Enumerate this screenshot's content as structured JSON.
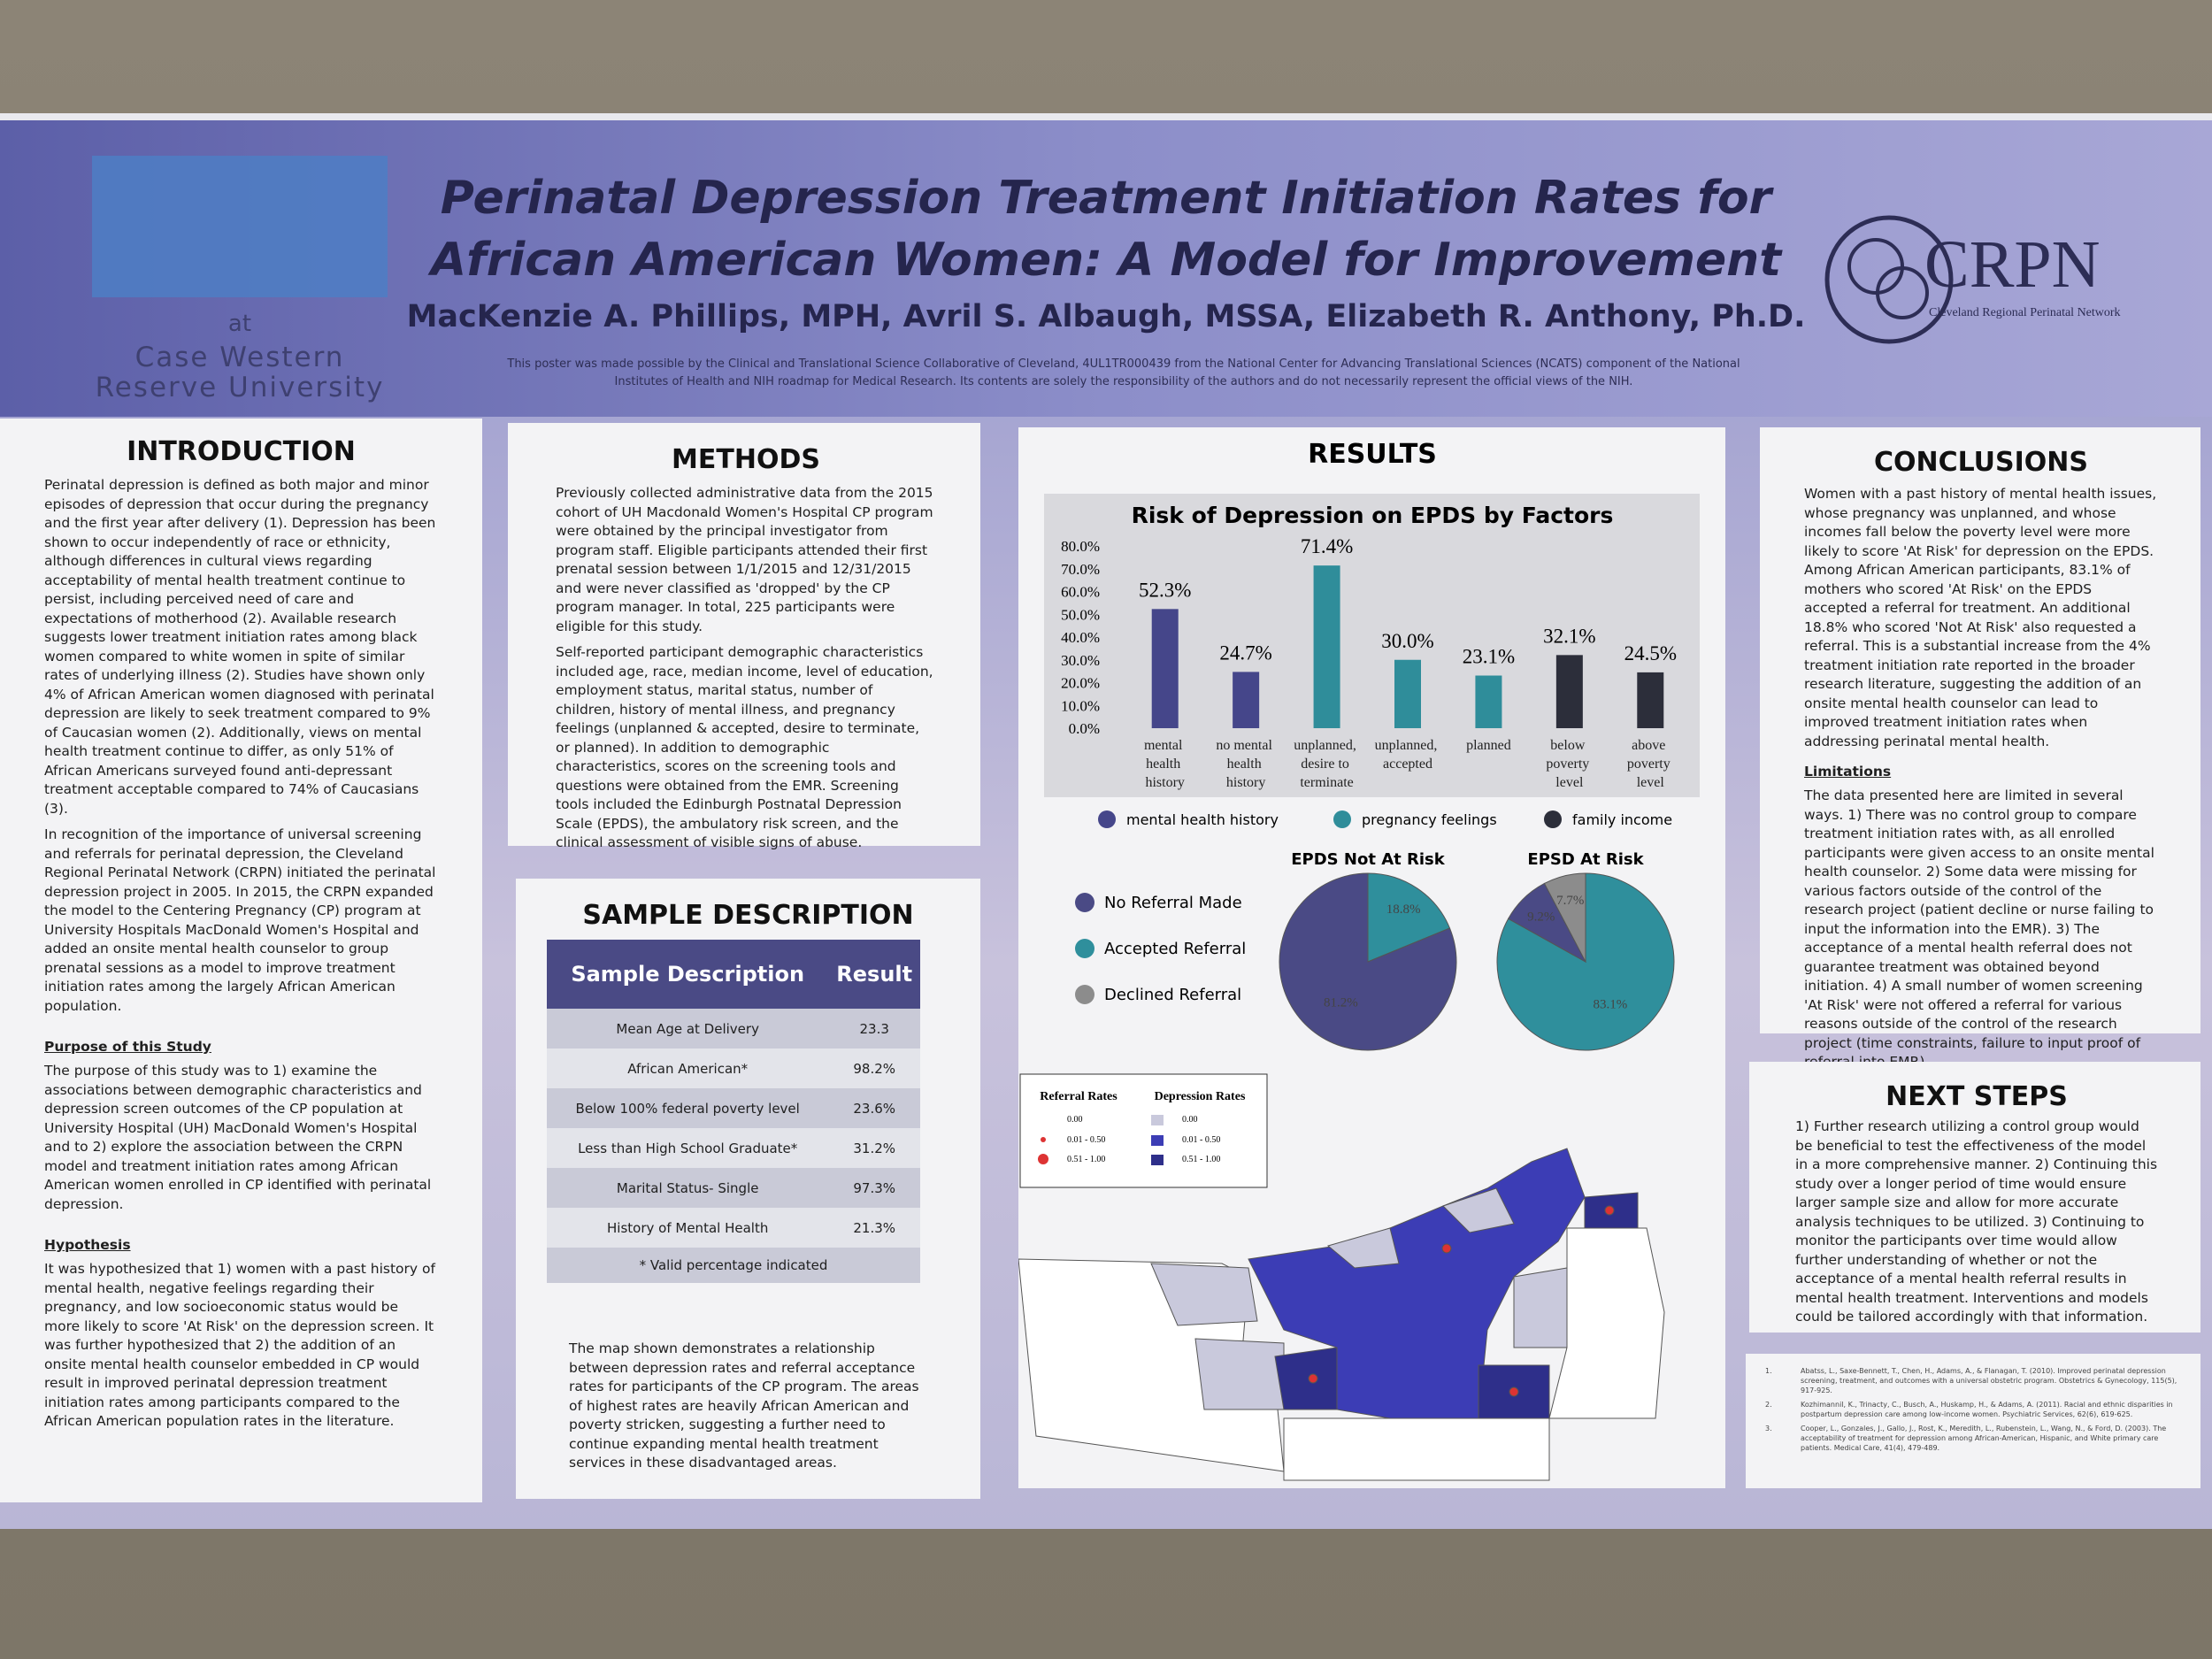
{
  "header": {
    "title_line1": "Perinatal Depression Treatment Initiation Rates for",
    "title_line2": "African American Women: A Model for Improvement",
    "authors": "MacKenzie A. Phillips, MPH, Avril S. Albaugh, MSSA, Elizabeth R. Anthony, Ph.D.",
    "funding": "This poster was made possible by the Clinical and Translational Science Collaborative of Cleveland, 4UL1TR000439 from the National Center for Advancing Translational Sciences (NCATS) component of the National Institutes of Health and NIH roadmap for Medical Research. Its contents are solely the responsibility of the authors and do not necessarily represent the official views of the NIH.",
    "left_logo": {
      "at": "at",
      "line1": "Case Western",
      "line2": "Reserve University"
    },
    "right_logo": {
      "name": "CRPN",
      "subtitle": "Cleveland Regional Perinatal Network"
    }
  },
  "introduction": {
    "heading": "INTRODUCTION",
    "paragraphs": [
      "Perinatal depression is defined as both major and minor episodes of depression that occur during the pregnancy and the first year after delivery (1). Depression has been shown to occur independently of race or ethnicity, although differences in cultural views regarding acceptability of mental health treatment continue to persist, including perceived need of care and expectations of motherhood (2). Available research suggests lower treatment initiation rates among black women compared to white women in spite of similar rates of underlying illness (2). Studies have shown only 4% of African American women diagnosed with perinatal depression are likely to seek treatment compared to 9% of Caucasian women (2). Additionally, views on mental health treatment continue to differ, as only 51% of African Americans surveyed found anti-depressant treatment acceptable compared to 74% of Caucasians (3).",
      "In recognition of the importance of universal screening and referrals for perinatal depression, the Cleveland Regional Perinatal Network (CRPN) initiated the perinatal depression project in 2005. In 2015, the CRPN expanded the model to the Centering Pregnancy (CP) program at University Hospitals MacDonald Women's Hospital and added an onsite mental health counselor to group prenatal sessions as a model to improve treatment initiation rates among the largely African American population."
    ],
    "purpose_heading": "Purpose of this Study",
    "purpose": "The purpose of this study was to 1) examine the associations between demographic characteristics and depression screen outcomes of the CP population at University Hospital (UH) MacDonald Women's Hospital and to 2) explore the association between the CRPN model and treatment initiation rates among African American women enrolled in CP identified with perinatal depression.",
    "hypothesis_heading": "Hypothesis",
    "hypothesis": "It was hypothesized that 1) women with a past history of mental health, negative feelings regarding their pregnancy, and low socioeconomic status would be more likely to score 'At Risk' on the depression screen. It was further hypothesized that 2) the addition of an onsite mental health counselor embedded in CP would result in improved perinatal depression treatment initiation rates among participants compared to the African American population rates in the literature."
  },
  "methods": {
    "heading": "METHODS",
    "paragraphs": [
      "Previously collected administrative data from the 2015 cohort of UH Macdonald Women's Hospital CP program were obtained by the principal investigator from program staff. Eligible participants attended their first prenatal session between 1/1/2015 and 12/31/2015 and were never classified as 'dropped' by the CP program manager. In total, 225 participants were eligible for this study.",
      "Self-reported participant demographic characteristics included age, race, median income, level of education, employment status, marital status, number of children, history of mental illness, and pregnancy feelings (unplanned & accepted, desire to terminate, or planned). In addition to demographic characteristics, scores on the screening tools and questions were obtained from the EMR. Screening tools included the Edinburgh Postnatal Depression Scale (EPDS), the ambulatory risk screen, and the clinical assessment of visible signs of abuse."
    ]
  },
  "sample": {
    "heading": "SAMPLE DESCRIPTION",
    "table": {
      "columns": [
        "Sample Description",
        "Result"
      ],
      "rows": [
        [
          "Mean Age at Delivery",
          "23.3"
        ],
        [
          "African American*",
          "98.2%"
        ],
        [
          "Below 100% federal poverty level",
          "23.6%"
        ],
        [
          "Less than High School Graduate*",
          "31.2%"
        ],
        [
          "Marital Status- Single",
          "97.3%"
        ],
        [
          "History of Mental Health",
          "21.3%"
        ]
      ],
      "footnote": "* Valid percentage indicated"
    },
    "map_text": "The map shown demonstrates a relationship between depression rates and referral acceptance rates for participants of the CP program. The areas of highest rates are heavily African American and poverty stricken, suggesting a further need to continue expanding mental health treatment services in these disadvantaged areas."
  },
  "results": {
    "heading": "RESULTS",
    "map_legend": {
      "referral_title": "Referral Rates",
      "depression_title": "Depression Rates",
      "referral_items": [
        "0.00",
        "0.01 - 0.50",
        "0.51 - 1.00"
      ],
      "depression_items": [
        "0.00",
        "0.01 - 0.50",
        "0.51 - 1.00"
      ]
    }
  },
  "chart_data": [
    {
      "type": "bar",
      "title": "Risk of Depression on EPDS by Factors",
      "categories": [
        "mental health history",
        "no mental health history",
        "unplanned, desire to terminate",
        "unplanned, accepted",
        "planned",
        "below poverty level",
        "above poverty level"
      ],
      "values": [
        52.3,
        24.7,
        71.4,
        30.0,
        23.1,
        32.1,
        24.5
      ],
      "value_labels": [
        "52.3%",
        "24.7%",
        "71.4%",
        "30.0%",
        "23.1%",
        "32.1%",
        "24.5%"
      ],
      "colors": [
        "#45468a",
        "#45468a",
        "#2f8d9a",
        "#2f8d9a",
        "#2f8d9a",
        "#2c2e3a",
        "#2c2e3a"
      ],
      "legend": [
        {
          "name": "mental health history",
          "color": "#45468a"
        },
        {
          "name": "pregnancy feelings",
          "color": "#2f8d9a"
        },
        {
          "name": "family income",
          "color": "#2c2e3a"
        }
      ],
      "ylim": [
        0,
        80
      ],
      "yticks": [
        {
          "value": 0,
          "label": "0.0%"
        },
        {
          "value": 10,
          "label": "10.0%"
        },
        {
          "value": 20,
          "label": "20.0%"
        },
        {
          "value": 30,
          "label": "30.0%"
        },
        {
          "value": 40,
          "label": "40.0%"
        },
        {
          "value": 50,
          "label": "50.0%"
        },
        {
          "value": 60,
          "label": "60.0%"
        },
        {
          "value": 70,
          "label": "70.0%"
        },
        {
          "value": 80,
          "label": "80.0%"
        }
      ],
      "grid": false
    },
    {
      "type": "pie",
      "categories": [
        "No Referral Made",
        "Accepted Referral",
        "Declined Referral"
      ],
      "colors": [
        "#4a4a85",
        "#2f8f9c",
        "#8c8c8c"
      ],
      "series": [
        {
          "name": "EPDS Not At Risk",
          "values": [
            81.2,
            18.8,
            0
          ],
          "value_labels": [
            "81.2%",
            "18.8%",
            null
          ]
        },
        {
          "name": "EPSD At Risk",
          "values": [
            9.2,
            83.1,
            7.7
          ],
          "value_labels": [
            "9.2%",
            "83.1%",
            "7.7%"
          ]
        }
      ]
    }
  ],
  "conclusions": {
    "heading": "CONCLUSIONS",
    "text": "Women with a past history of mental health issues, whose pregnancy was unplanned, and whose incomes fall below the poverty level were more likely to score 'At Risk' for depression on the EPDS. Among African American participants, 83.1% of mothers who scored 'At Risk' on the EPDS accepted a referral for treatment. An additional 18.8% who scored 'Not At Risk' also requested a referral. This is a substantial increase from the 4% treatment initiation rate reported in the broader research literature, suggesting the addition of an onsite mental health counselor can lead to improved treatment initiation rates when addressing perinatal mental health.",
    "limitations_heading": "Limitations",
    "limitations": "The data presented here are limited in several ways. 1) There was no control group to compare treatment initiation rates with, as all enrolled participants were given access to an onsite mental health counselor. 2) Some data were missing for various factors outside of the control of the research project (patient decline or nurse failing to input the information into the EMR). 3) The acceptance of a mental health referral does not guarantee treatment was obtained beyond initiation. 4) A small number of women screening 'At Risk' were not offered a referral for various reasons outside of the control of the research project (time constraints, failure to input proof of referral into EMR)."
  },
  "next_steps": {
    "heading": "NEXT STEPS",
    "text": "1) Further research utilizing a control group would be beneficial to test the effectiveness of the model in a more comprehensive manner. 2) Continuing this study over a longer period of time would ensure larger sample size and allow for more accurate analysis techniques to be utilized. 3) Continuing to monitor the participants over time would allow further understanding of whether or not the acceptance of a mental health referral results in mental health treatment. Interventions and models could be tailored accordingly with that information."
  },
  "references": [
    {
      "number": "1.",
      "text": "Abatss, L., Saxe-Bennett, T., Chen, H., Adams, A., & Flanagan, T. (2010). Improved perinatal depression screening, treatment, and outcomes with a universal obstetric program. Obstetrics & Gynecology, 115(5), 917-925."
    },
    {
      "number": "2.",
      "text": "Kozhimannil, K., Trinacty, C., Busch, A., Huskamp, H., & Adams, A. (2011). Racial and ethnic disparities in postpartum depression care among low-income women. Psychiatric Services, 62(6), 619-625."
    },
    {
      "number": "3.",
      "text": "Cooper, L., Gonzales, J., Gallo, J., Rost, K., Meredith, L., Rubenstein, L., Wang, N., & Ford, D. (2003). The acceptability of treatment for depression among African-American, Hispanic, and White primary care patients. Medical Care, 41(4), 479-489."
    }
  ]
}
